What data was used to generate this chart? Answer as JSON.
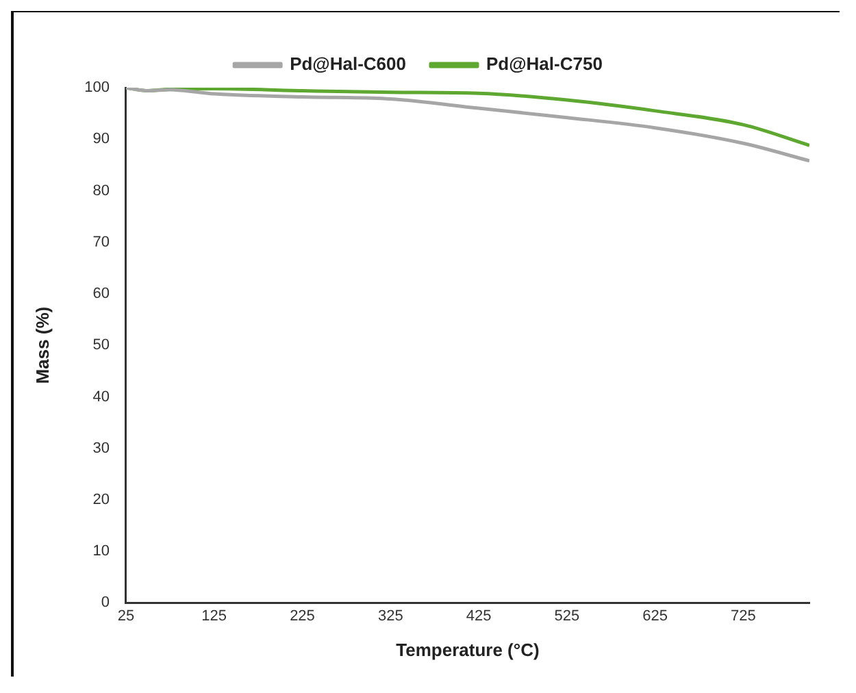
{
  "chart_data": {
    "type": "line",
    "xlabel": "Temperature (°C)",
    "ylabel": "Mass (%)",
    "x": [
      25,
      50,
      75,
      125,
      225,
      325,
      425,
      525,
      625,
      725,
      800
    ],
    "series": [
      {
        "name": "Pd@Hal-C600",
        "color": "#a6a6a6",
        "values": [
          100,
          99.4,
          99.6,
          98.8,
          98.2,
          97.8,
          96,
          94.2,
          92.2,
          89.2,
          85.8
        ]
      },
      {
        "name": "Pd@Hal-C750",
        "color": "#5ea832",
        "values": [
          100,
          99.4,
          99.7,
          99.8,
          99.4,
          99.1,
          98.9,
          97.6,
          95.5,
          92.8,
          88.8
        ]
      }
    ],
    "xlim": [
      25,
      800
    ],
    "xticks": [
      25,
      125,
      225,
      325,
      425,
      525,
      625,
      725
    ],
    "ylim": [
      0,
      100
    ],
    "yticks": [
      0,
      10,
      20,
      30,
      40,
      50,
      60,
      70,
      80,
      90,
      100
    ],
    "grid": false,
    "legend": "top",
    "marker": "none",
    "line_style": "solid"
  }
}
